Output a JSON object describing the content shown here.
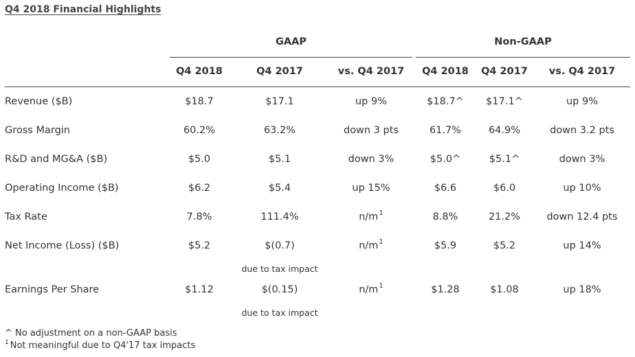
{
  "title": "Q4 2018 Financial Highlights",
  "groups": [
    {
      "label": "GAAP"
    },
    {
      "label": "Non-GAAP"
    }
  ],
  "columns": [
    "Q4 2018",
    "Q4 2017",
    "vs. Q4 2017",
    "Q4 2018",
    "Q4 2017",
    "vs. Q4 2017"
  ],
  "rows": [
    {
      "label": "Revenue ($B)",
      "cells": [
        {
          "text": "$18.7"
        },
        {
          "text": "$17.1"
        },
        {
          "text": "up 9%"
        },
        {
          "text": "$18.7^"
        },
        {
          "text": "$17.1^"
        },
        {
          "text": "up 9%"
        }
      ]
    },
    {
      "label": "Gross Margin",
      "cells": [
        {
          "text": "60.2%"
        },
        {
          "text": "63.2%"
        },
        {
          "text": "down 3 pts"
        },
        {
          "text": "61.7%"
        },
        {
          "text": "64.9%"
        },
        {
          "text": "down 3.2 pts"
        }
      ]
    },
    {
      "label": "R&D and MG&A ($B)",
      "cells": [
        {
          "text": "$5.0"
        },
        {
          "text": "$5.1"
        },
        {
          "text": "down 3%"
        },
        {
          "text": "$5.0^"
        },
        {
          "text": "$5.1^"
        },
        {
          "text": "down 3%"
        }
      ]
    },
    {
      "label": "Operating Income ($B)",
      "cells": [
        {
          "text": "$6.2"
        },
        {
          "text": "$5.4"
        },
        {
          "text": "up 15%"
        },
        {
          "text": "$6.6"
        },
        {
          "text": "$6.0"
        },
        {
          "text": "up 10%"
        }
      ]
    },
    {
      "label": "Tax Rate",
      "cells": [
        {
          "text": "7.8%"
        },
        {
          "text": "111.4%"
        },
        {
          "text": "n/m",
          "sup": "1"
        },
        {
          "text": "8.8%"
        },
        {
          "text": "21.2%"
        },
        {
          "text": "down 12.4 pts"
        }
      ]
    },
    {
      "label": "Net Income (Loss) ($B)",
      "cells": [
        {
          "text": "$5.2"
        },
        {
          "text": "$(0.7)",
          "note": "due to tax impact"
        },
        {
          "text": "n/m",
          "sup": "1"
        },
        {
          "text": "$5.9"
        },
        {
          "text": "$5.2"
        },
        {
          "text": "up 14%"
        }
      ]
    },
    {
      "label": "Earnings Per Share",
      "cells": [
        {
          "text": "$1.12"
        },
        {
          "text": "$(0.15)",
          "note": "due to tax impact"
        },
        {
          "text": "n/m",
          "sup": "1"
        },
        {
          "text": "$1.28"
        },
        {
          "text": "$1.08"
        },
        {
          "text": "up 18%"
        }
      ]
    }
  ],
  "footnotes": [
    {
      "marker": "",
      "text": "^ No adjustment on a non-GAAP basis"
    },
    {
      "marker": "1",
      "text": "Not meaningful due to Q4'17 tax impacts"
    }
  ]
}
